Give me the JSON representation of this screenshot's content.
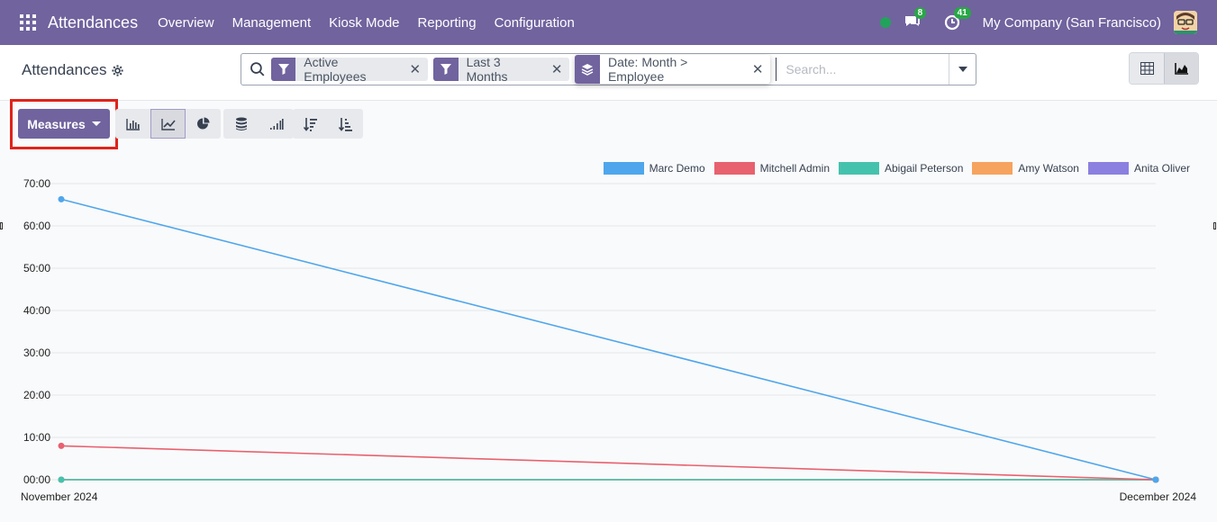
{
  "navbar": {
    "app_name": "Attendances",
    "menu": [
      "Overview",
      "Management",
      "Kiosk Mode",
      "Reporting",
      "Configuration"
    ],
    "messages_badge": "8",
    "activities_badge": "41",
    "company": "My Company (San Francisco)",
    "status_color": "#22a35b"
  },
  "control_panel": {
    "title": "Attendances",
    "facets": [
      {
        "icon": "filter-icon",
        "label": "Active Employees"
      },
      {
        "icon": "filter-icon",
        "label": "Last 3 Months"
      },
      {
        "icon": "layers-icon",
        "label": "Date: Month > Employee"
      }
    ],
    "search_placeholder": "Search..."
  },
  "toolbar": {
    "measures_label": "Measures",
    "buttons": [
      "bar-chart-icon",
      "line-chart-icon",
      "pie-chart-icon",
      "stacked-icon",
      "cumulative-icon",
      "sort-descending-icon",
      "sort-ascending-icon"
    ],
    "active_chart": "line"
  },
  "colors": {
    "accent": "#71639e",
    "highlight": "#e0231b"
  },
  "chart_data": {
    "type": "line",
    "x": [
      "November 2024",
      "December 2024"
    ],
    "y_ticks": [
      "00:00",
      "10:00",
      "20:00",
      "30:00",
      "40:00",
      "50:00",
      "60:00",
      "70:00"
    ],
    "ylim": [
      0,
      70
    ],
    "legend_position": "top-right",
    "grid": true,
    "series": [
      {
        "name": "Marc Demo",
        "color": "#4fa6ec",
        "values": [
          66.3,
          0
        ]
      },
      {
        "name": "Mitchell Admin",
        "color": "#e8616f",
        "values": [
          8,
          0
        ]
      },
      {
        "name": "Abigail Peterson",
        "color": "#45c2ad",
        "values": [
          0,
          0
        ]
      },
      {
        "name": "Amy Watson",
        "color": "#f6a35f",
        "values": [
          0,
          0
        ]
      },
      {
        "name": "Anita Oliver",
        "color": "#8b80e0",
        "values": [
          0,
          0
        ]
      }
    ]
  }
}
